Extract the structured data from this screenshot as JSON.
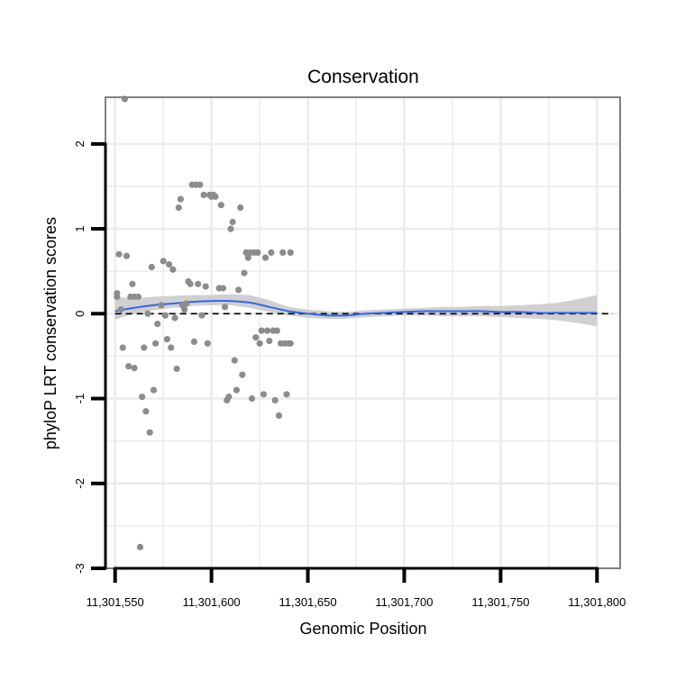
{
  "chart_data": {
    "type": "scatter",
    "title": "Conservation",
    "xlabel": "Genomic Position",
    "ylabel": "phyloP LRT conservation scores",
    "xlim": [
      11301545,
      11301812
    ],
    "ylim": [
      -3,
      2.55
    ],
    "x_ticks": [
      {
        "value": 11301550,
        "label": "11,301,550"
      },
      {
        "value": 11301600,
        "label": "11,301,600"
      },
      {
        "value": 11301650,
        "label": "11,301,650"
      },
      {
        "value": 11301700,
        "label": "11,301,700"
      },
      {
        "value": 11301750,
        "label": "11,301,750"
      },
      {
        "value": 11301800,
        "label": "11,301,800"
      }
    ],
    "y_ticks": [
      {
        "value": -3,
        "label": "-3"
      },
      {
        "value": -2,
        "label": "-2"
      },
      {
        "value": -1,
        "label": "-1"
      },
      {
        "value": 0,
        "label": "0"
      },
      {
        "value": 1,
        "label": "1"
      },
      {
        "value": 2,
        "label": "2"
      }
    ],
    "grid": true,
    "reference_line": {
      "y": 0,
      "style": "dashed"
    },
    "colors": {
      "points": "#8c8c8c",
      "smooth_line": "#3366ee",
      "ribbon": "#c8c8c8",
      "grid": "#ececec",
      "panel_border": "#808080"
    },
    "series": [
      {
        "name": "phyloP LRT",
        "points": [
          [
            11301551,
            0.2
          ],
          [
            11301551,
            0.24
          ],
          [
            11301552,
            0.7
          ],
          [
            11301553,
            0.05
          ],
          [
            11301554,
            -0.4
          ],
          [
            11301555,
            2.53
          ],
          [
            11301556,
            0.68
          ],
          [
            11301557,
            -0.62
          ],
          [
            11301558,
            0.2
          ],
          [
            11301559,
            0.35
          ],
          [
            11301560,
            -0.64
          ],
          [
            11301560,
            0.2
          ],
          [
            11301562,
            0.2
          ],
          [
            11301563,
            -2.75
          ],
          [
            11301564,
            -0.98
          ],
          [
            11301565,
            -0.4
          ],
          [
            11301566,
            -1.15
          ],
          [
            11301567,
            0.0
          ],
          [
            11301568,
            -1.4
          ],
          [
            11301569,
            0.55
          ],
          [
            11301570,
            -0.9
          ],
          [
            11301571,
            -0.35
          ],
          [
            11301572,
            -0.12
          ],
          [
            11301574,
            0.1
          ],
          [
            11301575,
            0.62
          ],
          [
            11301576,
            -0.02
          ],
          [
            11301577,
            -0.3
          ],
          [
            11301578,
            0.58
          ],
          [
            11301579,
            -0.4
          ],
          [
            11301580,
            0.52
          ],
          [
            11301581,
            -0.05
          ],
          [
            11301582,
            -0.65
          ],
          [
            11301583,
            1.25
          ],
          [
            11301584,
            1.35
          ],
          [
            11301585,
            0.1
          ],
          [
            11301586,
            0.05
          ],
          [
            11301587,
            0.12
          ],
          [
            11301588,
            0.38
          ],
          [
            11301589,
            0.35
          ],
          [
            11301590,
            1.52
          ],
          [
            11301591,
            -0.33
          ],
          [
            11301592,
            1.52
          ],
          [
            11301593,
            0.35
          ],
          [
            11301594,
            1.52
          ],
          [
            11301595,
            -0.02
          ],
          [
            11301596,
            1.4
          ],
          [
            11301597,
            0.32
          ],
          [
            11301598,
            -0.35
          ],
          [
            11301599,
            1.4
          ],
          [
            11301600,
            1.38
          ],
          [
            11301601,
            1.4
          ],
          [
            11301602,
            1.38
          ],
          [
            11301604,
            0.3
          ],
          [
            11301605,
            1.28
          ],
          [
            11301606,
            0.3
          ],
          [
            11301607,
            0.08
          ],
          [
            11301608,
            -1.02
          ],
          [
            11301609,
            -0.98
          ],
          [
            11301610,
            1.0
          ],
          [
            11301611,
            1.08
          ],
          [
            11301612,
            -0.55
          ],
          [
            11301613,
            -0.9
          ],
          [
            11301614,
            0.28
          ],
          [
            11301615,
            1.25
          ],
          [
            11301616,
            -0.72
          ],
          [
            11301617,
            0.48
          ],
          [
            11301618,
            0.72
          ],
          [
            11301619,
            0.66
          ],
          [
            11301620,
            0.72
          ],
          [
            11301621,
            -1.0
          ],
          [
            11301622,
            0.72
          ],
          [
            11301623,
            -0.28
          ],
          [
            11301624,
            0.72
          ],
          [
            11301625,
            -0.35
          ],
          [
            11301626,
            -0.2
          ],
          [
            11301627,
            -0.95
          ],
          [
            11301628,
            0.66
          ],
          [
            11301629,
            -0.2
          ],
          [
            11301630,
            -0.32
          ],
          [
            11301631,
            0.72
          ],
          [
            11301632,
            -0.2
          ],
          [
            11301633,
            -1.02
          ],
          [
            11301634,
            -0.2
          ],
          [
            11301635,
            -1.2
          ],
          [
            11301636,
            -0.35
          ],
          [
            11301637,
            0.72
          ],
          [
            11301638,
            -0.35
          ],
          [
            11301639,
            -0.95
          ],
          [
            11301640,
            -0.35
          ],
          [
            11301641,
            0.72
          ],
          [
            11301641,
            -0.35
          ]
        ]
      }
    ],
    "smooth": {
      "method": "loess",
      "x": [
        11301550,
        11301560,
        11301570,
        11301580,
        11301590,
        11301600,
        11301610,
        11301620,
        11301630,
        11301640,
        11301650,
        11301660,
        11301670,
        11301680,
        11301690,
        11301700,
        11301710,
        11301720,
        11301730,
        11301740,
        11301750,
        11301760,
        11301770,
        11301780,
        11301790,
        11301800
      ],
      "y": [
        0.03,
        0.07,
        0.1,
        0.12,
        0.14,
        0.15,
        0.15,
        0.13,
        0.08,
        0.03,
        0.0,
        -0.02,
        -0.02,
        0.0,
        0.01,
        0.02,
        0.03,
        0.03,
        0.03,
        0.03,
        0.02,
        0.02,
        0.01,
        0.01,
        0.01,
        0.01
      ],
      "ci_low": [
        -0.07,
        0.0,
        0.04,
        0.07,
        0.09,
        0.1,
        0.1,
        0.07,
        0.02,
        -0.02,
        -0.05,
        -0.06,
        -0.06,
        -0.04,
        -0.03,
        -0.02,
        -0.02,
        -0.03,
        -0.03,
        -0.03,
        -0.04,
        -0.05,
        -0.06,
        -0.08,
        -0.11,
        -0.15
      ],
      "ci_high": [
        0.2,
        0.18,
        0.2,
        0.21,
        0.22,
        0.22,
        0.23,
        0.22,
        0.16,
        0.08,
        0.05,
        0.03,
        0.02,
        0.04,
        0.05,
        0.06,
        0.07,
        0.08,
        0.08,
        0.09,
        0.09,
        0.1,
        0.11,
        0.13,
        0.17,
        0.22
      ]
    }
  }
}
